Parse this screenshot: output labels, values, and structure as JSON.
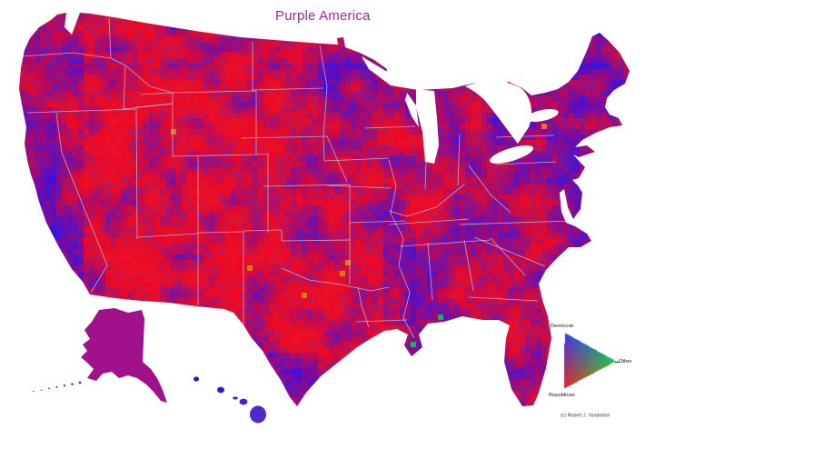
{
  "title": "Purple America",
  "title_color": "#A226A8",
  "legend": {
    "democrat_label": "Democrat",
    "republican_label": "Republican",
    "other_label": "Other",
    "democrat_color": "#3C3CE8",
    "republican_color": "#E62626",
    "other_color": "#22C453"
  },
  "credit": "(c) Robert J. Vanderbei",
  "map": {
    "description": "US county-level choropleth blending Republican red and Democrat blue vote shares",
    "red": "#EA0826",
    "blue": "#3408E6",
    "state_line_color": "#D2BFD2",
    "alaska_color": "#A2118C",
    "lake_color": "#FFFFFF",
    "background": "#FFFFFF",
    "hawaii_colors": [
      "#2A14C8",
      "#3318CC",
      "#5522CC",
      "#4A1ECF",
      "#5128C9"
    ]
  }
}
